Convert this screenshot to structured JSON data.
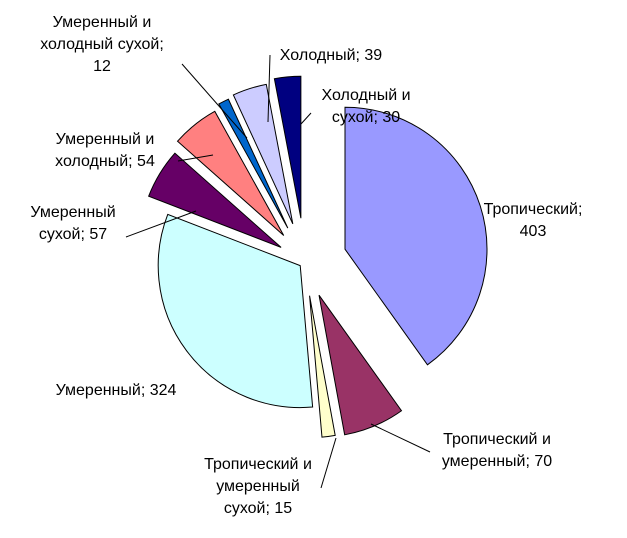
{
  "chart_data": {
    "type": "pie",
    "exploded": true,
    "title": "",
    "slices": [
      {
        "label_lines": [
          "Тропический;",
          "403"
        ],
        "value": 403,
        "color": "#9999ff"
      },
      {
        "label_lines": [
          "Тропический и",
          "умеренный; 70"
        ],
        "value": 70,
        "color": "#993366"
      },
      {
        "label_lines": [
          "Тропический и",
          "умеренный",
          "сухой; 15"
        ],
        "value": 15,
        "color": "#ffffcc"
      },
      {
        "label_lines": [
          "Умеренный; 324"
        ],
        "value": 324,
        "color": "#ccffff"
      },
      {
        "label_lines": [
          "Умеренный",
          "сухой; 57"
        ],
        "value": 57,
        "color": "#660066"
      },
      {
        "label_lines": [
          "Умеренный и",
          "холодный; 54"
        ],
        "value": 54,
        "color": "#ff8080"
      },
      {
        "label_lines": [
          "Умеренный и",
          "холодный сухой;",
          "12"
        ],
        "value": 12,
        "color": "#0066cc"
      },
      {
        "label_lines": [
          "Холодный; 39"
        ],
        "value": 39,
        "color": "#ccccff"
      },
      {
        "label_lines": [
          "Холодный и",
          "сухой; 30"
        ],
        "value": 30,
        "color": "#000080"
      }
    ]
  }
}
